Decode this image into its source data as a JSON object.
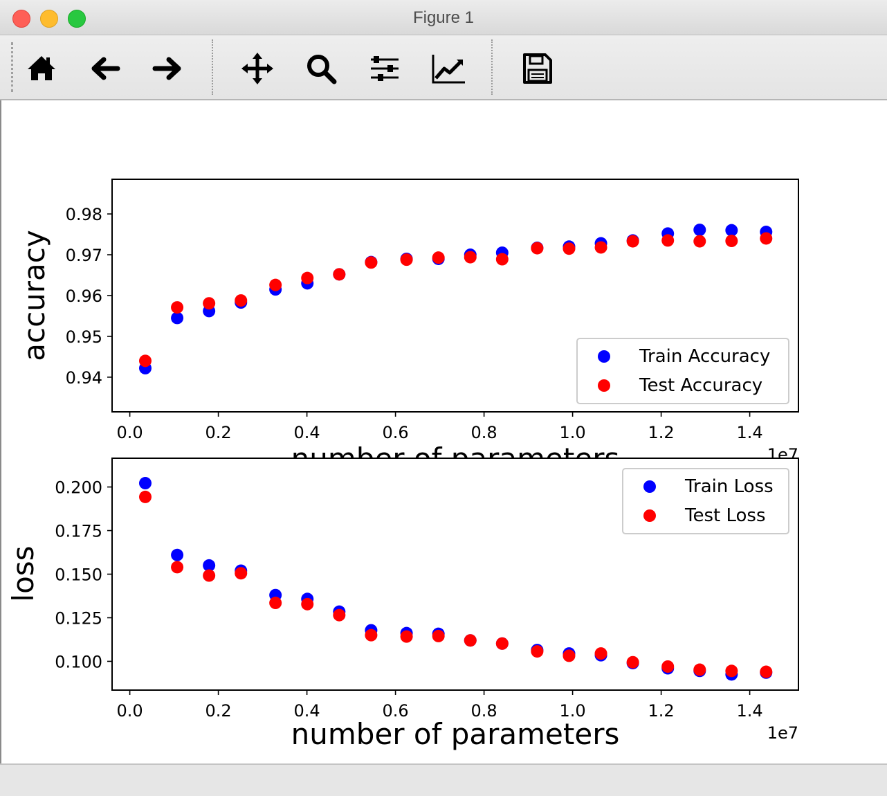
{
  "window": {
    "title": "Figure 1"
  },
  "toolbar": {
    "buttons": [
      {
        "name": "home-icon"
      },
      {
        "name": "back-arrow-icon"
      },
      {
        "name": "forward-arrow-icon"
      },
      {
        "name": "pan-move-icon"
      },
      {
        "name": "zoom-magnifier-icon"
      },
      {
        "name": "subplots-config-icon"
      },
      {
        "name": "edit-axis-curve-icon"
      },
      {
        "name": "save-floppy-icon"
      }
    ]
  },
  "chart_data": [
    {
      "type": "scatter",
      "title": "",
      "xlabel": "number of parameters",
      "ylabel": "accuracy",
      "x_offset_label": "1e7",
      "xlim": [
        -0.04,
        1.51
      ],
      "ylim": [
        0.9315,
        0.9885
      ],
      "xticks": [
        0.0,
        0.2,
        0.4,
        0.6,
        0.8,
        1.0,
        1.2,
        1.4
      ],
      "xtick_labels": [
        "0.0",
        "0.2",
        "0.4",
        "0.6",
        "0.8",
        "1.0",
        "1.2",
        "1.4"
      ],
      "yticks": [
        0.94,
        0.95,
        0.96,
        0.97,
        0.98
      ],
      "ytick_labels": [
        "0.94",
        "0.95",
        "0.96",
        "0.97",
        "0.98"
      ],
      "legend_position": "lower-right",
      "x": [
        0.035,
        0.107,
        0.179,
        0.251,
        0.329,
        0.401,
        0.473,
        0.545,
        0.625,
        0.697,
        0.769,
        0.841,
        0.92,
        0.992,
        1.064,
        1.136,
        1.215,
        1.287,
        1.359,
        1.437
      ],
      "series": [
        {
          "name": "Train Accuracy",
          "color": "#0000ff",
          "values": [
            0.9422,
            0.9545,
            0.9562,
            0.9583,
            0.9615,
            0.963,
            0.9652,
            0.9682,
            0.969,
            0.969,
            0.97,
            0.9705,
            0.9717,
            0.972,
            0.9728,
            0.9735,
            0.9752,
            0.9761,
            0.976,
            0.9756
          ]
        },
        {
          "name": "Test Accuracy",
          "color": "#ff0000",
          "values": [
            0.944,
            0.9571,
            0.9581,
            0.9588,
            0.9626,
            0.9643,
            0.9652,
            0.9681,
            0.9688,
            0.9693,
            0.9694,
            0.9689,
            0.9716,
            0.9715,
            0.9718,
            0.9733,
            0.9735,
            0.9733,
            0.9734,
            0.974
          ]
        }
      ]
    },
    {
      "type": "scatter",
      "title": "",
      "xlabel": "number of parameters",
      "ylabel": "loss",
      "x_offset_label": "1e7",
      "xlim": [
        -0.04,
        1.51
      ],
      "ylim": [
        0.0835,
        0.2165
      ],
      "xticks": [
        0.0,
        0.2,
        0.4,
        0.6,
        0.8,
        1.0,
        1.2,
        1.4
      ],
      "xtick_labels": [
        "0.0",
        "0.2",
        "0.4",
        "0.6",
        "0.8",
        "1.0",
        "1.2",
        "1.4"
      ],
      "yticks": [
        0.1,
        0.125,
        0.15,
        0.175,
        0.2
      ],
      "ytick_labels": [
        "0.100",
        "0.125",
        "0.150",
        "0.175",
        "0.200"
      ],
      "legend_position": "upper-right",
      "x": [
        0.035,
        0.107,
        0.179,
        0.251,
        0.329,
        0.401,
        0.473,
        0.545,
        0.625,
        0.697,
        0.769,
        0.841,
        0.92,
        0.992,
        1.064,
        1.136,
        1.215,
        1.287,
        1.359,
        1.437
      ],
      "series": [
        {
          "name": "Train Loss",
          "color": "#0000ff",
          "values": [
            0.2022,
            0.161,
            0.155,
            0.152,
            0.138,
            0.1358,
            0.1285,
            0.1178,
            0.1162,
            0.1158,
            0.112,
            0.1102,
            0.1065,
            0.1045,
            0.1035,
            0.099,
            0.096,
            0.0945,
            0.0925,
            0.0935
          ]
        },
        {
          "name": "Test Loss",
          "color": "#ff0000",
          "values": [
            0.1943,
            0.154,
            0.1492,
            0.1505,
            0.1335,
            0.1328,
            0.1265,
            0.115,
            0.1142,
            0.1145,
            0.112,
            0.1102,
            0.1057,
            0.1032,
            0.1045,
            0.0995,
            0.097,
            0.0952,
            0.0945,
            0.094
          ]
        }
      ]
    }
  ]
}
